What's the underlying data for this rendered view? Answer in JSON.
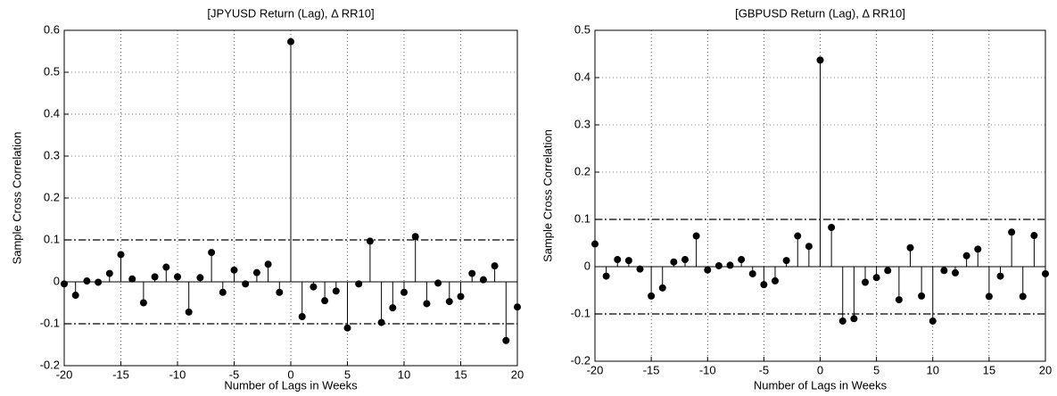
{
  "chart_data": [
    {
      "type": "stem",
      "title": "[JPYUSD Return (Lag), Δ RR10]",
      "x_label": "Number of Lags in Weeks",
      "y_label": "Sample Cross Correlation",
      "x": [
        -20,
        -19,
        -18,
        -17,
        -16,
        -15,
        -14,
        -13,
        -12,
        -11,
        -10,
        -9,
        -8,
        -7,
        -6,
        -5,
        -4,
        -3,
        -2,
        -1,
        0,
        1,
        2,
        3,
        4,
        5,
        6,
        7,
        8,
        9,
        10,
        11,
        12,
        13,
        14,
        15,
        16,
        17,
        18,
        19,
        20
      ],
      "values": [
        -0.005,
        -0.032,
        0.002,
        -0.001,
        0.02,
        0.065,
        0.007,
        -0.05,
        0.012,
        0.035,
        0.012,
        -0.072,
        0.01,
        0.07,
        -0.025,
        0.028,
        -0.005,
        0.022,
        0.042,
        -0.025,
        0.573,
        -0.083,
        -0.012,
        -0.045,
        -0.022,
        -0.11,
        -0.005,
        0.097,
        -0.097,
        -0.062,
        -0.025,
        0.108,
        -0.052,
        -0.003,
        -0.047,
        -0.035,
        0.02,
        0.005,
        0.038,
        -0.14,
        -0.06
      ],
      "bounds": [
        -0.1,
        0.1
      ],
      "color": "#000000",
      "xlim": [
        -20,
        20
      ],
      "xticks": [
        -20,
        -15,
        -10,
        -5,
        0,
        5,
        10,
        15,
        20
      ],
      "ylim": [
        -0.2,
        0.6
      ],
      "yticks": [
        -0.2,
        -0.1,
        0,
        0.1,
        0.2,
        0.3,
        0.4,
        0.5,
        0.6
      ],
      "grid": true
    },
    {
      "type": "stem",
      "title": "[GBPUSD Return (Lag), Δ RR10]",
      "x_label": "Number of Lags in Weeks",
      "y_label": "Sample Cross Correlation",
      "x": [
        -20,
        -19,
        -18,
        -17,
        -16,
        -15,
        -14,
        -13,
        -12,
        -11,
        -10,
        -9,
        -8,
        -7,
        -6,
        -5,
        -4,
        -3,
        -2,
        -1,
        0,
        1,
        2,
        3,
        4,
        5,
        6,
        7,
        8,
        9,
        10,
        11,
        12,
        13,
        14,
        15,
        16,
        17,
        18,
        19,
        20
      ],
      "values": [
        0.048,
        -0.02,
        0.015,
        0.013,
        -0.005,
        -0.062,
        -0.045,
        0.01,
        0.015,
        0.065,
        -0.007,
        0.002,
        0.003,
        0.015,
        -0.015,
        -0.038,
        -0.03,
        0.013,
        0.065,
        0.043,
        0.437,
        0.083,
        -0.115,
        -0.11,
        -0.033,
        -0.023,
        -0.008,
        -0.07,
        0.04,
        -0.062,
        -0.115,
        -0.008,
        -0.013,
        0.023,
        0.037,
        -0.063,
        -0.02,
        0.073,
        -0.063,
        0.066,
        -0.015
      ],
      "bounds": [
        -0.1,
        0.1
      ],
      "color": "#000000",
      "xlim": [
        -20,
        20
      ],
      "xticks": [
        -20,
        -15,
        -10,
        -5,
        0,
        5,
        10,
        15,
        20
      ],
      "ylim": [
        -0.2,
        0.5
      ],
      "yticks": [
        -0.2,
        -0.1,
        0,
        0.1,
        0.2,
        0.3,
        0.4,
        0.5
      ],
      "grid": true
    }
  ]
}
